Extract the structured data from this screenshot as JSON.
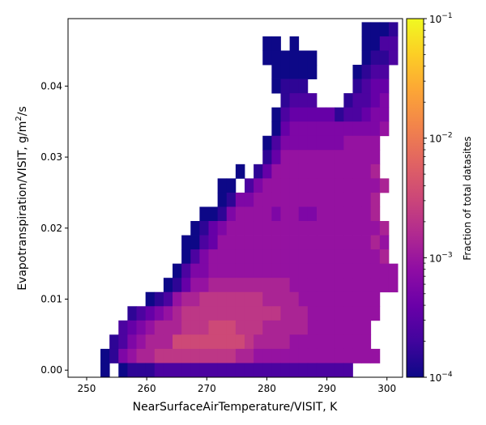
{
  "chart_data": {
    "type": "heatmap",
    "xlabel": "NearSurfaceAirTemperature/VISIT,  K",
    "ylabel_main": "Evapotranspiration/VISIT,  g/m",
    "ylabel_sup": "2",
    "ylabel_tail": "/s",
    "x_ticks": [
      250,
      260,
      270,
      280,
      290,
      300
    ],
    "y_ticks": [
      0.0,
      0.01,
      0.02,
      0.03,
      0.04
    ],
    "x_tick_labels": [
      "250",
      "260",
      "270",
      "280",
      "290",
      "300"
    ],
    "y_tick_labels": [
      "0.00",
      "0.01",
      "0.02",
      "0.03",
      "0.04"
    ],
    "xlim": [
      246.9,
      302.6
    ],
    "ylim": [
      -0.001,
      0.0495
    ],
    "colormap": "plasma",
    "color_scale": "log",
    "colorbar": {
      "label": "Fraction of total datasites",
      "range": [
        0.0001,
        0.1
      ],
      "ticks": [
        {
          "base": "10",
          "exp": "−1",
          "value": 0.1
        },
        {
          "base": "10",
          "exp": "−2",
          "value": 0.01
        },
        {
          "base": "10",
          "exp": "−3",
          "value": 0.001
        },
        {
          "base": "10",
          "exp": "−4",
          "value": 0.0001
        }
      ]
    },
    "bins": {
      "x_start": 250.8,
      "x_width": 1.5,
      "nx": 34,
      "y_start": -0.001,
      "y_width": 0.002,
      "ny": 25
    },
    "cells_log10": [
      [
        2,
        -3.8
      ],
      [
        3,
        -3.8
      ],
      [
        7,
        -4
      ],
      [
        8,
        -4
      ],
      [
        9,
        -4
      ],
      [
        16,
        -4
      ],
      [
        17,
        -4
      ],
      [
        18,
        -4
      ],
      [
        19,
        -4
      ],
      [
        24,
        -4
      ],
      [
        25,
        -4
      ],
      [
        2,
        -3.8
      ],
      [
        4,
        -3.1
      ],
      [
        5,
        -3.1
      ],
      [
        6,
        -3
      ],
      [
        7,
        -3
      ],
      [
        8,
        -3.3
      ],
      [
        9,
        -3.3
      ],
      [
        10,
        -3.6
      ],
      [
        11,
        -3.6
      ],
      [
        12,
        -3.8
      ],
      [
        13,
        -3.8
      ],
      [
        14,
        -3.7
      ],
      [
        15,
        -3.7
      ],
      [
        16,
        -3.7
      ],
      [
        17,
        -3.5
      ],
      [
        18,
        -3.5
      ],
      [
        19,
        -3.4
      ],
      [
        20,
        -3.4
      ],
      [
        21,
        -3.4
      ],
      [
        22,
        -3.5
      ],
      [
        23,
        -3.6
      ],
      [
        24,
        -3.5
      ],
      [
        25,
        -3.4
      ],
      [
        26,
        -3.8
      ],
      [
        27,
        -3.7
      ],
      [
        28,
        -3.7
      ]
    ],
    "rows": [
      {
        "y": 0,
        "cells": "...2...2222222..2222....22........"
      },
      {
        "y": 1,
        "cells": ".1.3.333336666644443333344333.2....."
      },
      {
        "y": 2,
        "cells": ".1234556777768665666655555565555554."
      },
      {
        "y": 3,
        "cells": ".1.3445677778787766666656666666555.."
      },
      {
        "y": 4,
        "cells": "...33566778888887777766666666655..."
      },
      {
        "y": 5,
        "cells": "....4566788999887777766766666665...."
      },
      {
        "y": 6,
        "cells": "......2567799987777766666566655....."
      },
      {
        "y": 7,
        "cells": "......2356899887777666666555555....."
      },
      {
        "y": 8,
        "cells": "......22456788777777666665555555...."
      },
      {
        "y": 9,
        "cells": "........4567777777766666565555555..."
      },
      {
        "y": 10,
        "cells": "........1.2345667776665555555555554.."
      }
    ],
    "grid": [
      "..............................1112",
      "...................11.1.......1133",
      "...................111111.....1223",
      "....................11111....1233",
      "....................1222.....2344",
      ".....................2333...23345",
      "....................1344444233455",
      "....................1455555555556",
      "...................1355555556666",
      "...................2466666666666",
      "................1.24666666666667",
      "..............11.3566666666666667",
      "..............125566666666666667",
      "............11256666566556666667",
      "...........1245666666666666666667",
      "..........11346666666666666666676",
      "..........13566666666666666666667",
      ".........1355666666666666666666666",
      "........12466777777777666666666666",
      "......12367788888887777666666666",
      "....2345678888888888877766666666",
      "...3456777888999888777776666666",
      "..23567779999999987777666666666",
      ".1256778888888887766666666666666",
      ".1.12223333333333333333333333"
    ]
  }
}
